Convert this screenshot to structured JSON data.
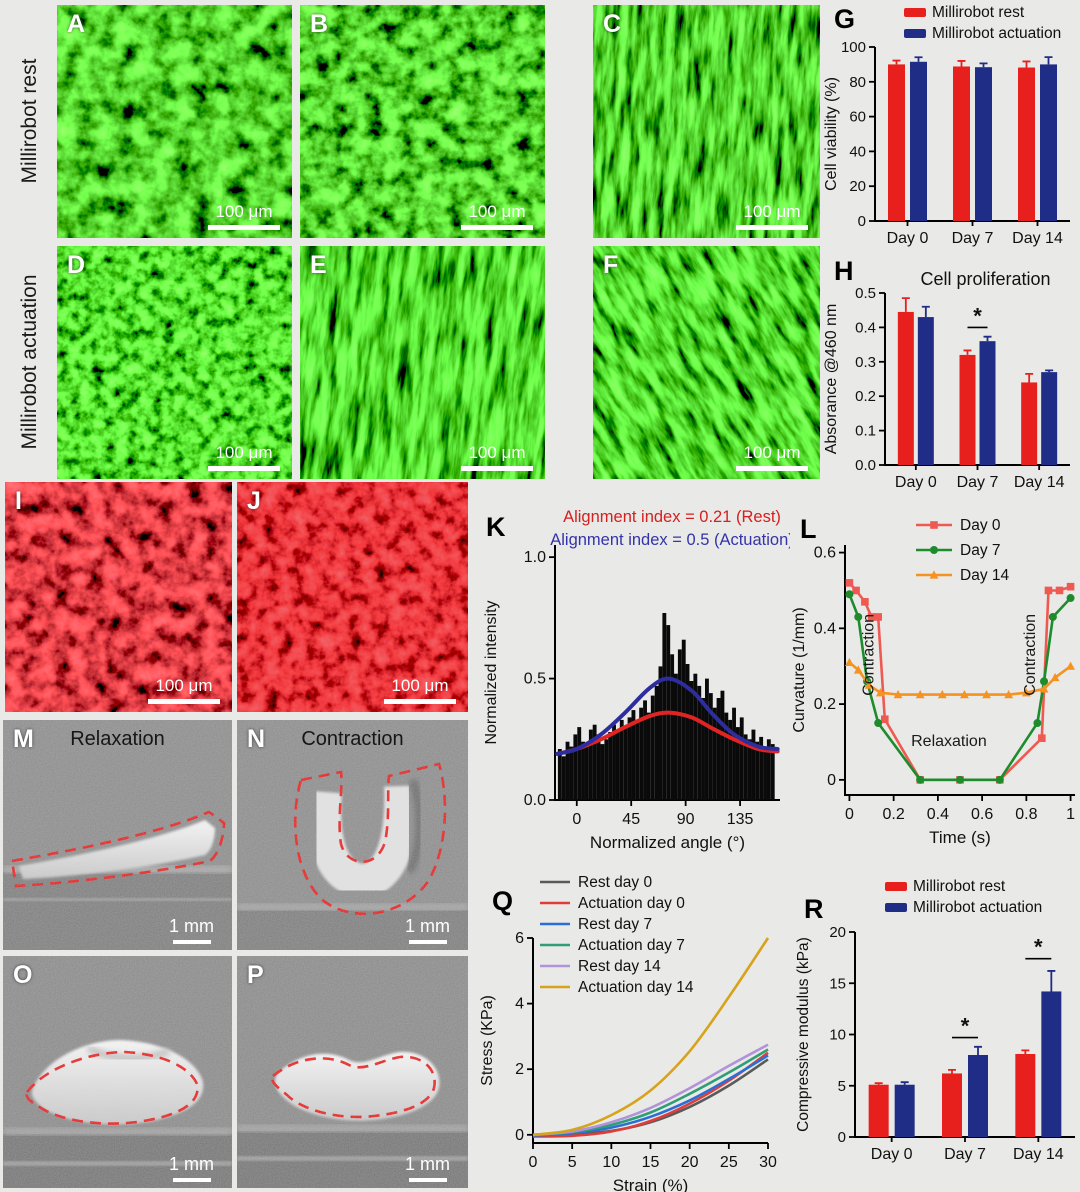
{
  "row_labels": [
    "Millirobot rest",
    "Millirobot actuation"
  ],
  "panels": {
    "green": [
      {
        "letter": "A",
        "scalebar": "100 μm"
      },
      {
        "letter": "B",
        "scalebar": "100 μm"
      },
      {
        "letter": "C",
        "scalebar": "100 μm"
      },
      {
        "letter": "D",
        "scalebar": "100 μm"
      },
      {
        "letter": "E",
        "scalebar": "100 μm"
      },
      {
        "letter": "F",
        "scalebar": "100 μm"
      }
    ],
    "red": [
      {
        "letter": "I",
        "scalebar": "100 μm"
      },
      {
        "letter": "J",
        "scalebar": "100 μm"
      }
    ],
    "gray": [
      {
        "letter": "M",
        "caption": "Relaxation",
        "scalebar": "1 mm"
      },
      {
        "letter": "N",
        "caption": "Contraction",
        "scalebar": "1 mm"
      },
      {
        "letter": "O",
        "caption": "",
        "scalebar": "1 mm"
      },
      {
        "letter": "P",
        "caption": "",
        "scalebar": "1 mm"
      }
    ]
  },
  "chart_letters": {
    "G": "G",
    "H": "H",
    "K": "K",
    "L": "L",
    "Q": "Q",
    "R": "R"
  },
  "chart_data": [
    {
      "id": "G",
      "type": "bar",
      "categories": [
        "Day 0",
        "Day 7",
        "Day 14"
      ],
      "series": [
        {
          "name": "Millirobot rest",
          "color": "#e8201d",
          "values": [
            90,
            88.8,
            88.2
          ],
          "errors": [
            2.2,
            3.2,
            3.5
          ]
        },
        {
          "name": "Millirobot actuation",
          "color": "#1f2d87",
          "values": [
            91.5,
            88.4,
            90
          ],
          "errors": [
            2.6,
            2.2,
            4.2
          ]
        }
      ],
      "ylabel": "Cell viability (%)",
      "ylim": [
        0,
        100
      ],
      "yticks": [
        0,
        20,
        40,
        60,
        80,
        100
      ],
      "ytick_labels": [
        "0",
        "20",
        "40",
        "60",
        "80",
        "100"
      ],
      "legend": true
    },
    {
      "id": "H",
      "type": "bar",
      "title": "Cell proliferation",
      "categories": [
        "Day 0",
        "Day 7",
        "Day 14"
      ],
      "series": [
        {
          "name": "Millirobot rest",
          "color": "#e8201d",
          "values": [
            0.445,
            0.32,
            0.24
          ],
          "errors": [
            0.04,
            0.013,
            0.025
          ]
        },
        {
          "name": "Millirobot actuation",
          "color": "#1f2d87",
          "values": [
            0.43,
            0.36,
            0.27
          ],
          "errors": [
            0.03,
            0.013,
            0.005
          ]
        }
      ],
      "ylabel": "Absorance @460 nm",
      "ylim": [
        0,
        0.5
      ],
      "yticks": [
        0,
        0.1,
        0.2,
        0.3,
        0.4,
        0.5
      ],
      "ytick_labels": [
        "0.0",
        "0.1",
        "0.2",
        "0.3",
        "0.4",
        "0.5"
      ],
      "sig": [
        {
          "cat": 1,
          "y": 0.4,
          "label": "*"
        }
      ]
    },
    {
      "id": "K",
      "type": "histogram",
      "annotations": [
        {
          "text": "Alignment index = 0.21 (Rest)",
          "color": "#d42020"
        },
        {
          "text": "Alignment index = 0.5 (Actuation)",
          "color": "#3434aa"
        }
      ],
      "ylabel": "Normalized intensity",
      "xlabel": "Normalized angle (°)",
      "xlim": [
        -18,
        168
      ],
      "ylim": [
        0,
        1.05
      ],
      "yticks": [
        0,
        0.5,
        1.0
      ],
      "ytick_labels": [
        "0.0",
        "0.5",
        "1.0"
      ],
      "xticks": [
        0,
        45,
        90,
        135
      ],
      "xtick_labels": [
        "0",
        "45",
        "90",
        "135"
      ],
      "bin_start": -14,
      "bin_step": 3.2,
      "bar_color": "#0a0a0a",
      "values": [
        0.21,
        0.18,
        0.24,
        0.22,
        0.27,
        0.3,
        0.24,
        0.22,
        0.29,
        0.31,
        0.27,
        0.23,
        0.25,
        0.28,
        0.31,
        0.29,
        0.33,
        0.3,
        0.34,
        0.37,
        0.33,
        0.38,
        0.41,
        0.36,
        0.43,
        0.47,
        0.55,
        0.77,
        0.72,
        0.6,
        0.52,
        0.62,
        0.66,
        0.56,
        0.49,
        0.52,
        0.47,
        0.42,
        0.5,
        0.44,
        0.38,
        0.42,
        0.45,
        0.36,
        0.33,
        0.38,
        0.3,
        0.34,
        0.27,
        0.25,
        0.29,
        0.24,
        0.26,
        0.22,
        0.25,
        0.23
      ],
      "curves": [
        {
          "name": "Rest fit",
          "color": "#e02424",
          "points": [
            [
              -16,
              0.19
            ],
            [
              0,
              0.21
            ],
            [
              20,
              0.25
            ],
            [
              40,
              0.3
            ],
            [
              60,
              0.345
            ],
            [
              76,
              0.36
            ],
            [
              95,
              0.34
            ],
            [
              112,
              0.295
            ],
            [
              130,
              0.25
            ],
            [
              150,
              0.21
            ],
            [
              166,
              0.2
            ]
          ]
        },
        {
          "name": "Actuation fit",
          "color": "#2d2d9e",
          "points": [
            [
              -16,
              0.19
            ],
            [
              0,
              0.21
            ],
            [
              20,
              0.27
            ],
            [
              40,
              0.36
            ],
            [
              60,
              0.46
            ],
            [
              76,
              0.5
            ],
            [
              95,
              0.45
            ],
            [
              112,
              0.355
            ],
            [
              130,
              0.27
            ],
            [
              150,
              0.22
            ],
            [
              166,
              0.21
            ]
          ]
        }
      ]
    },
    {
      "id": "L",
      "type": "line",
      "xlabel": "Time (s)",
      "ylabel": "Curvature (1/mm)",
      "xlim": [
        -0.02,
        1.02
      ],
      "ylim": [
        -0.04,
        0.62
      ],
      "xticks": [
        0,
        0.2,
        0.4,
        0.6,
        0.8,
        1
      ],
      "xtick_labels": [
        "0",
        "0.2",
        "0.4",
        "0.6",
        "0.8",
        "1"
      ],
      "yticks": [
        0,
        0.2,
        0.4,
        0.6
      ],
      "ytick_labels": [
        "0",
        "0.2",
        "0.4",
        "0.6"
      ],
      "series": [
        {
          "name": "Day 0",
          "color": "#ee5a52",
          "marker": "square",
          "points": [
            [
              0,
              0.52
            ],
            [
              0.03,
              0.5
            ],
            [
              0.07,
              0.47
            ],
            [
              0.1,
              0.43
            ],
            [
              0.13,
              0.43
            ],
            [
              0.16,
              0.16
            ],
            [
              0.32,
              0
            ],
            [
              0.5,
              0
            ],
            [
              0.68,
              0
            ],
            [
              0.87,
              0.11
            ],
            [
              0.9,
              0.5
            ],
            [
              0.95,
              0.5
            ],
            [
              1,
              0.51
            ]
          ]
        },
        {
          "name": "Day 7",
          "color": "#1e8b2d",
          "marker": "circle",
          "points": [
            [
              0,
              0.49
            ],
            [
              0.04,
              0.43
            ],
            [
              0.08,
              0.26
            ],
            [
              0.13,
              0.15
            ],
            [
              0.32,
              0
            ],
            [
              0.5,
              0
            ],
            [
              0.68,
              0
            ],
            [
              0.85,
              0.15
            ],
            [
              0.88,
              0.26
            ],
            [
              0.92,
              0.43
            ],
            [
              1,
              0.48
            ]
          ]
        },
        {
          "name": "Day 14",
          "color": "#f59220",
          "marker": "triangle",
          "points": [
            [
              0,
              0.31
            ],
            [
              0.04,
              0.29
            ],
            [
              0.09,
              0.25
            ],
            [
              0.14,
              0.23
            ],
            [
              0.22,
              0.225
            ],
            [
              0.32,
              0.225
            ],
            [
              0.42,
              0.225
            ],
            [
              0.52,
              0.225
            ],
            [
              0.62,
              0.225
            ],
            [
              0.72,
              0.225
            ],
            [
              0.8,
              0.23
            ],
            [
              0.88,
              0.24
            ],
            [
              0.93,
              0.27
            ],
            [
              1,
              0.3
            ]
          ]
        }
      ],
      "annotations": [
        {
          "text": "Contraction",
          "x": 0.11,
          "y": 0.33,
          "rotate": -90
        },
        {
          "text": "Contraction",
          "x": 0.84,
          "y": 0.33,
          "rotate": -90
        },
        {
          "text": "Relaxation",
          "x": 0.45,
          "y": 0.09,
          "rotate": 0
        }
      ],
      "legend": true
    },
    {
      "id": "Q",
      "type": "line",
      "smooth": true,
      "xlabel": "Strain (%)",
      "ylabel": "Stress (KPa)",
      "xlim": [
        0,
        30
      ],
      "ylim": [
        -0.25,
        6
      ],
      "xticks": [
        0,
        5,
        10,
        15,
        20,
        25,
        30
      ],
      "xtick_labels": [
        "0",
        "5",
        "10",
        "15",
        "20",
        "25",
        "30"
      ],
      "yticks": [
        0,
        2,
        4,
        6
      ],
      "ytick_labels": [
        "0",
        "2",
        "4",
        "6"
      ],
      "series": [
        {
          "name": "Rest day 0",
          "color": "#5a5a5a",
          "points": [
            [
              0,
              0
            ],
            [
              5,
              0.02
            ],
            [
              10,
              0.12
            ],
            [
              15,
              0.38
            ],
            [
              20,
              0.85
            ],
            [
              25,
              1.5
            ],
            [
              30,
              2.3
            ]
          ]
        },
        {
          "name": "Actuation day 0",
          "color": "#e03c38",
          "points": [
            [
              0,
              -0.05
            ],
            [
              5,
              -0.03
            ],
            [
              10,
              0.1
            ],
            [
              15,
              0.42
            ],
            [
              20,
              0.95
            ],
            [
              25,
              1.65
            ],
            [
              30,
              2.5
            ]
          ]
        },
        {
          "name": "Rest day 7",
          "color": "#2a6fd6",
          "points": [
            [
              0,
              -0.02
            ],
            [
              5,
              0.05
            ],
            [
              10,
              0.22
            ],
            [
              15,
              0.55
            ],
            [
              20,
              1.05
            ],
            [
              25,
              1.7
            ],
            [
              30,
              2.42
            ]
          ]
        },
        {
          "name": "Actuation day 7",
          "color": "#2f9e74",
          "points": [
            [
              0,
              0
            ],
            [
              5,
              0.08
            ],
            [
              10,
              0.3
            ],
            [
              15,
              0.68
            ],
            [
              20,
              1.25
            ],
            [
              25,
              1.9
            ],
            [
              30,
              2.6
            ]
          ]
        },
        {
          "name": "Rest day 14",
          "color": "#b193da",
          "points": [
            [
              0,
              0
            ],
            [
              5,
              0.1
            ],
            [
              10,
              0.38
            ],
            [
              15,
              0.82
            ],
            [
              20,
              1.42
            ],
            [
              25,
              2.1
            ],
            [
              30,
              2.75
            ]
          ]
        },
        {
          "name": "Actuation day 14",
          "color": "#d8a31c",
          "points": [
            [
              0,
              0
            ],
            [
              5,
              0.15
            ],
            [
              10,
              0.6
            ],
            [
              15,
              1.35
            ],
            [
              20,
              2.55
            ],
            [
              25,
              4.2
            ],
            [
              30,
              6
            ]
          ]
        }
      ],
      "legend": true
    },
    {
      "id": "R",
      "type": "bar",
      "categories": [
        "Day 0",
        "Day 7",
        "Day 14"
      ],
      "series": [
        {
          "name": "Millirobot rest",
          "color": "#e8201d",
          "values": [
            5.1,
            6.2,
            8.1
          ],
          "errors": [
            0.15,
            0.35,
            0.35
          ]
        },
        {
          "name": "Millirobot actuation",
          "color": "#1f2d87",
          "values": [
            5.1,
            8.0,
            14.2
          ],
          "errors": [
            0.25,
            0.8,
            2.0
          ]
        }
      ],
      "ylabel": "Compressive modulus (kPa)",
      "ylim": [
        0,
        20
      ],
      "yticks": [
        0,
        5,
        10,
        15,
        20
      ],
      "ytick_labels": [
        "0",
        "5",
        "10",
        "15",
        "20"
      ],
      "sig": [
        {
          "cat": 1,
          "y": 9.7,
          "label": "*"
        },
        {
          "cat": 2,
          "y": 17.4,
          "label": "*"
        }
      ],
      "legend": true
    }
  ]
}
